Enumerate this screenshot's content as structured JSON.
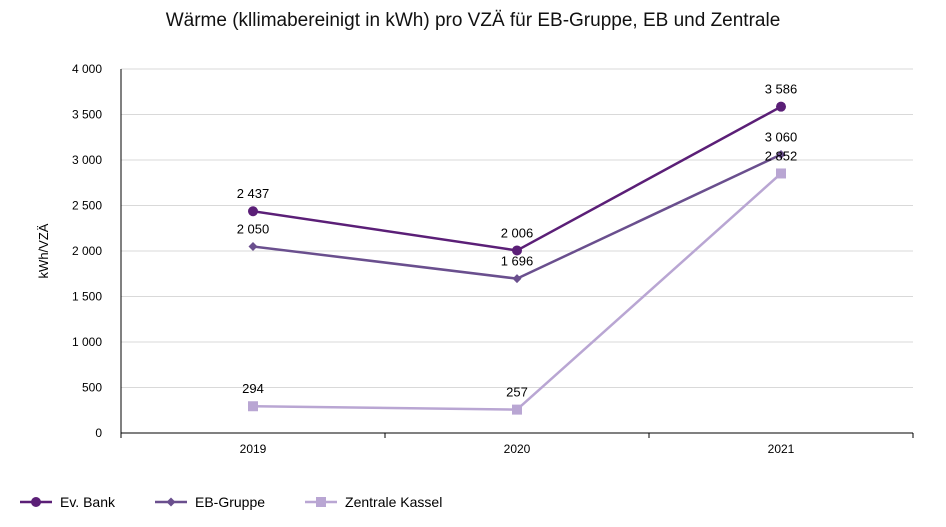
{
  "chart_data": {
    "type": "line",
    "title": "Wärme (kllimabereinigt in kWh) pro VZÄ für EB-Gruppe, EB und Zentrale",
    "xlabel": "",
    "ylabel": "kWh/VZÄ",
    "categories": [
      "2019",
      "2020",
      "2021"
    ],
    "ylim": [
      0,
      4000
    ],
    "yticks": [
      0,
      500,
      1000,
      1500,
      2000,
      2500,
      3000,
      3500,
      4000
    ],
    "ytick_labels": [
      "0",
      "500",
      "1 000",
      "1 500",
      "2 000",
      "2 500",
      "3 000",
      "3 500",
      "4 000"
    ],
    "grid": "horizontal",
    "legend_position": "bottom-left",
    "series": [
      {
        "name": "Ev. Bank",
        "values": [
          2437,
          2006,
          3586
        ],
        "labels": [
          "2 437",
          "2 006",
          "3 586"
        ],
        "color": "#5b1f77",
        "marker": "circle"
      },
      {
        "name": "EB-Gruppe",
        "values": [
          2050,
          1696,
          3060
        ],
        "labels": [
          "2 050",
          "1 696",
          "3 060"
        ],
        "color": "#6a4f8e",
        "marker": "diamond"
      },
      {
        "name": "Zentrale Kassel",
        "values": [
          294,
          257,
          2852
        ],
        "labels": [
          "294",
          "257",
          "2 852"
        ],
        "color": "#b9a6d3",
        "marker": "square"
      }
    ]
  }
}
